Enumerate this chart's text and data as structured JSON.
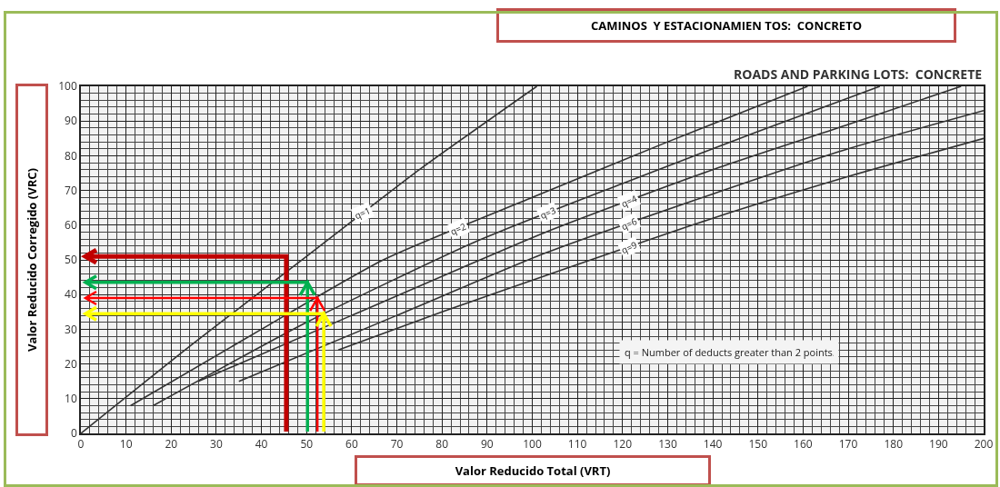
{
  "chart_data": {
    "type": "line",
    "title": "CAMINOS  Y ESTACIONAMIEN TOS:  CONCRETO",
    "subtitle": "ROADS AND PARKING LOTS:  CONCRETE",
    "xlabel": "Valor Reducido Total (VRT)",
    "ylabel": "Valor Reducido Corregido (VRC)",
    "annotations": [
      "q = Number of deducts greater than 2 points."
    ],
    "xlim": [
      0,
      200
    ],
    "ylim": [
      0,
      100
    ],
    "xticks": [
      0,
      10,
      20,
      30,
      40,
      50,
      60,
      70,
      80,
      90,
      100,
      110,
      120,
      130,
      140,
      150,
      160,
      170,
      180,
      190,
      200
    ],
    "yticks": [
      0,
      10,
      20,
      30,
      40,
      50,
      60,
      70,
      80,
      90,
      100
    ],
    "grid": true,
    "legend": false,
    "marker": "none",
    "line_style": "solid",
    "series": [
      {
        "name": "q=1",
        "color": "#333333",
        "x": [
          0,
          25,
          50,
          75,
          101
        ],
        "values": [
          0,
          26,
          51,
          76,
          100
        ]
      },
      {
        "name": "q=2",
        "color": "#333333",
        "x": [
          11,
          40,
          67,
          100,
          130,
          161
        ],
        "values": [
          8,
          30,
          50,
          68,
          84,
          100
        ]
      },
      {
        "name": "q=3",
        "color": "#333333",
        "x": [
          16,
          50,
          87,
          120,
          150,
          177
        ],
        "values": [
          8,
          32,
          55,
          72,
          87,
          100
        ]
      },
      {
        "name": "q=4",
        "color": "#333333",
        "x": [
          26,
          60,
          103,
          140,
          170,
          195
        ],
        "values": [
          15,
          34,
          58,
          76,
          89,
          100
        ]
      },
      {
        "name": "q=6",
        "color": "#333333",
        "x": [
          35,
          70,
          103,
          140,
          170,
          200
        ],
        "values": [
          15,
          34,
          52,
          69,
          82,
          93
        ]
      },
      {
        "name": "q=9",
        "color": "#333333",
        "x": [
          57,
          80,
          103,
          140,
          170,
          200
        ],
        "values": [
          24,
          35,
          45.5,
          62,
          74,
          85
        ]
      }
    ]
  }
}
